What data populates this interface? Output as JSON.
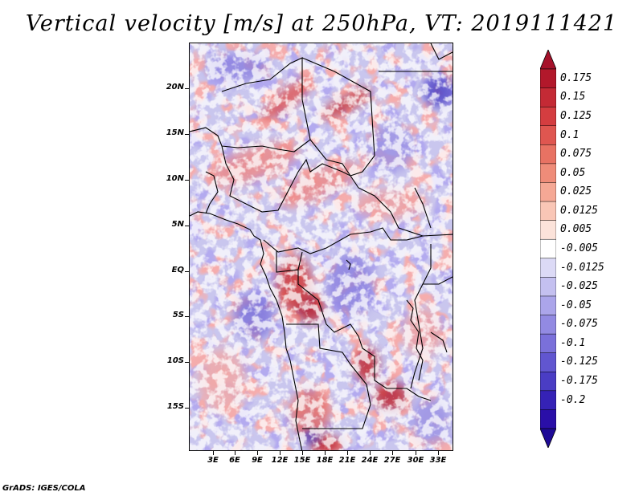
{
  "title": "Vertical velocity [m/s] at 250hPa, VT: 2019111421",
  "footer": "GrADS: IGES/COLA",
  "lat_labels": [
    "20N",
    "15N",
    "10N",
    "5N",
    "EQ",
    "5S",
    "10S",
    "15S"
  ],
  "lon_labels": [
    "3E",
    "6E",
    "9E",
    "12E",
    "15E",
    "18E",
    "21E",
    "24E",
    "27E",
    "30E",
    "33E"
  ],
  "colorbar": {
    "labels": [
      "0.175",
      "0.15",
      "0.125",
      "0.1",
      "0.075",
      "0.05",
      "0.025",
      "0.0125",
      "0.005",
      "-0.005",
      "-0.0125",
      "-0.025",
      "-0.05",
      "-0.075",
      "-0.1",
      "-0.125",
      "-0.175",
      "-0.2"
    ],
    "colors": [
      "#b2182b",
      "#c42a35",
      "#d43d40",
      "#df5650",
      "#e87263",
      "#ef8c79",
      "#f5a895",
      "#f9c6b6",
      "#fce3da",
      "#ffffff",
      "#dcdaf6",
      "#c4c0f0",
      "#aba5ea",
      "#928ae2",
      "#7a70da",
      "#6156d0",
      "#4a3dc4",
      "#3522b6",
      "#2a0fa8"
    ],
    "top_color": "#a5112a",
    "bottom_color": "#1e0a96"
  },
  "map": {
    "background_color": "#c9c6ee",
    "warm_color": "#e66a6a",
    "strong_warm_color": "#b2182b",
    "cool_color": "#8a7fe0",
    "strong_cool_color": "#3522b6"
  }
}
